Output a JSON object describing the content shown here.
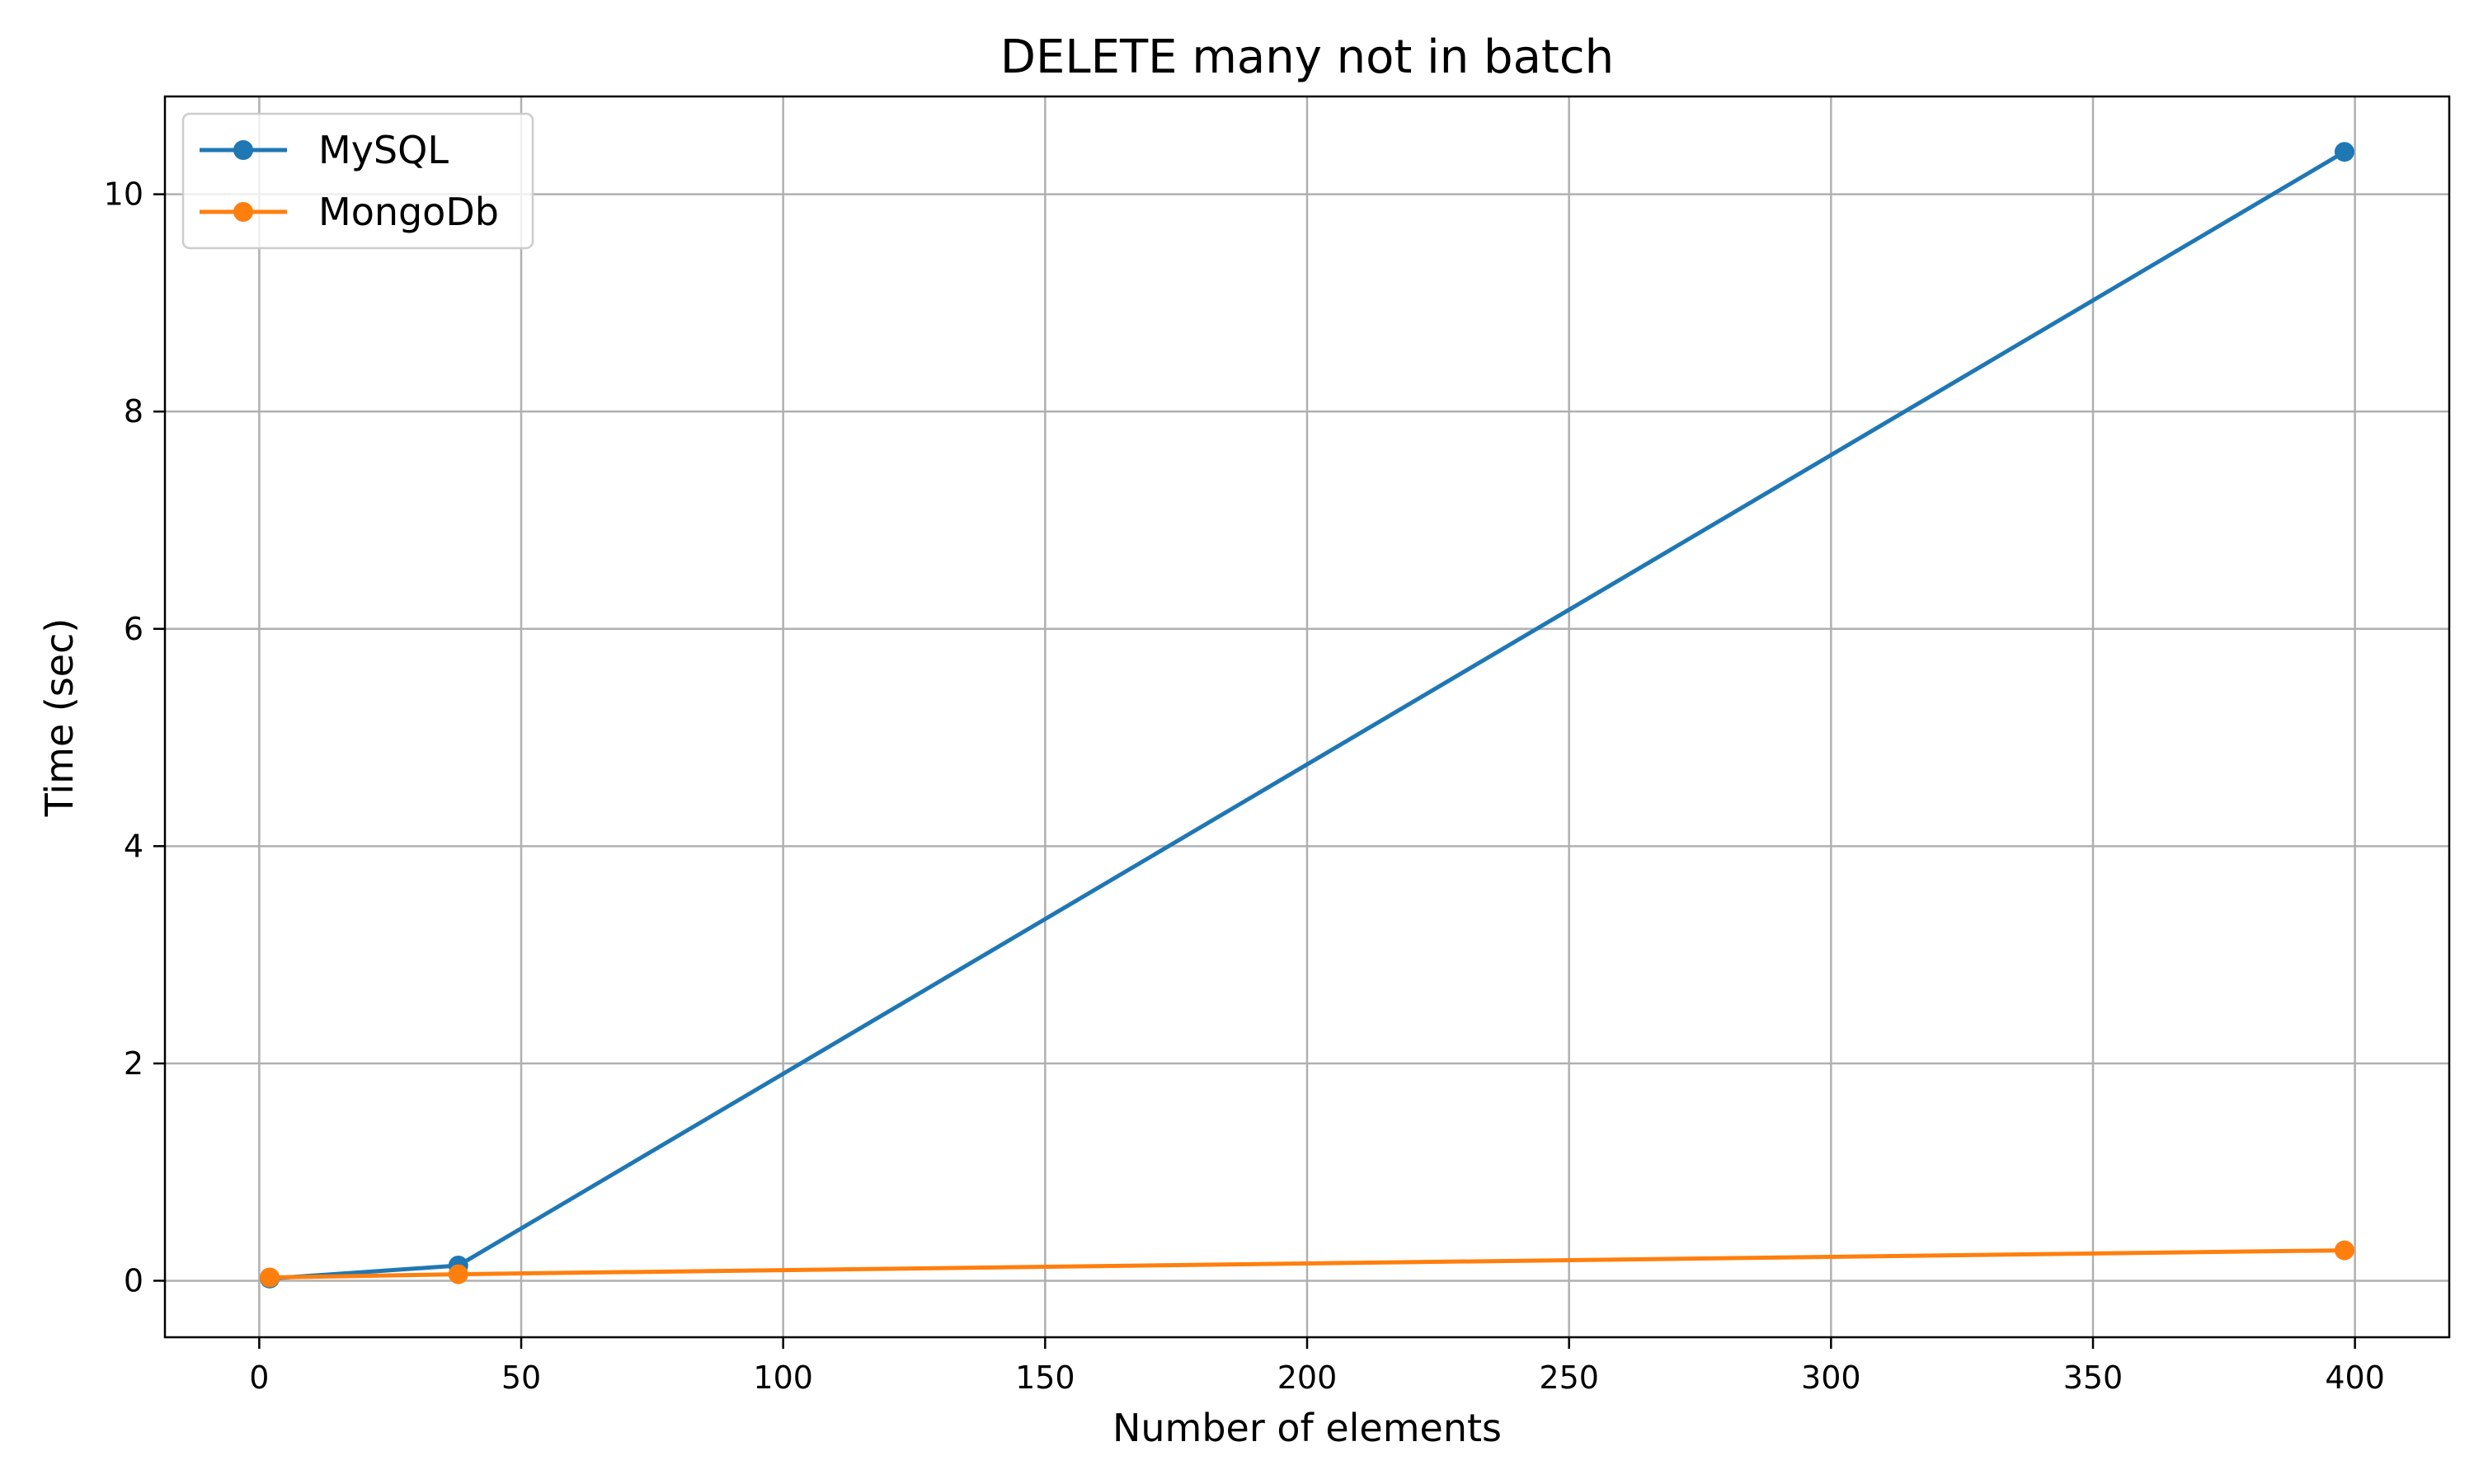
{
  "chart_data": {
    "type": "line",
    "title": "DELETE many not in batch",
    "xlabel": "Number of elements",
    "ylabel": "Time (sec)",
    "xlim": [
      -18,
      418
    ],
    "ylim": [
      -0.52,
      10.9
    ],
    "xticks": [
      0,
      50,
      100,
      150,
      200,
      250,
      300,
      350,
      400
    ],
    "yticks": [
      0,
      2,
      4,
      6,
      8,
      10
    ],
    "grid": true,
    "legend_position": "top-left",
    "series": [
      {
        "name": "MySQL",
        "color": "#1f77b4",
        "marker": "circle",
        "x": [
          2,
          38,
          398
        ],
        "y": [
          0.02,
          0.14,
          10.39
        ]
      },
      {
        "name": "MongoDb",
        "color": "#ff7f0e",
        "marker": "circle",
        "x": [
          2,
          38,
          398
        ],
        "y": [
          0.03,
          0.06,
          0.28
        ]
      }
    ]
  }
}
